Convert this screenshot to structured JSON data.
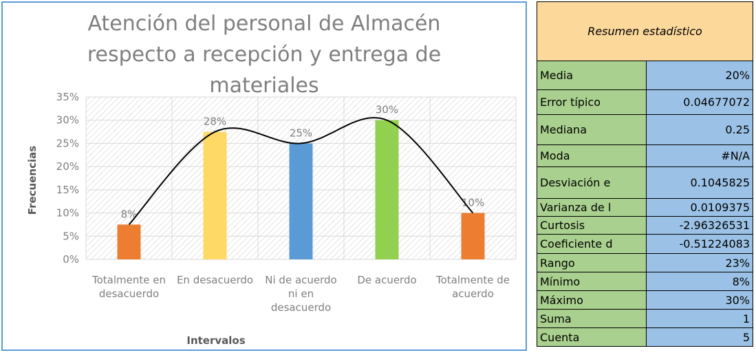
{
  "chart_data": {
    "type": "bar",
    "title": "Atención del personal de Almacén respecto a recepción y entrega de materiales",
    "x_label": "Intervalos",
    "y_label": "Frecuencias",
    "categories": [
      "Totalmente en desacuerdo",
      "En desacuerdo",
      "Ni de acuerdo ni en desacuerdo",
      "De acuerdo",
      "Totalmente de acuerdo"
    ],
    "values": [
      7.5,
      27.5,
      25,
      30,
      10
    ],
    "value_labels": [
      "8%",
      "28%",
      "25%",
      "30%",
      "10%"
    ],
    "colors": [
      "#ed7d31",
      "#ffd966",
      "#5b9bd5",
      "#92d050",
      "#ed7d31"
    ],
    "trend_line": "smooth",
    "line_color": "#000000",
    "ylim": [
      0,
      35
    ],
    "yticks": [
      {
        "value": 0,
        "label": "0%"
      },
      {
        "value": 5,
        "label": "5%"
      },
      {
        "value": 10,
        "label": "10%"
      },
      {
        "value": 15,
        "label": "15%"
      },
      {
        "value": 20,
        "label": "20%"
      },
      {
        "value": 25,
        "label": "25%"
      },
      {
        "value": 30,
        "label": "30%"
      },
      {
        "value": 35,
        "label": "35%"
      }
    ],
    "grid": true
  },
  "table": {
    "title": "Resumen estadístico",
    "rows": [
      [
        "Media",
        "20%"
      ],
      [
        "Error típico",
        "0.04677072"
      ],
      [
        "Mediana",
        "0.25"
      ],
      [
        "Moda",
        "#N/A"
      ],
      [
        "Desviación e",
        "0.1045825"
      ],
      [
        "Varianza de l",
        "0.0109375"
      ],
      [
        "Curtosis",
        "-2.96326531"
      ],
      [
        "Coeficiente d",
        "-0.51224083"
      ],
      [
        "Rango",
        "23%"
      ],
      [
        "Mínimo",
        "8%"
      ],
      [
        "Máximo",
        "30%"
      ],
      [
        "Suma",
        "1"
      ],
      [
        "Cuenta",
        "5"
      ]
    ]
  }
}
